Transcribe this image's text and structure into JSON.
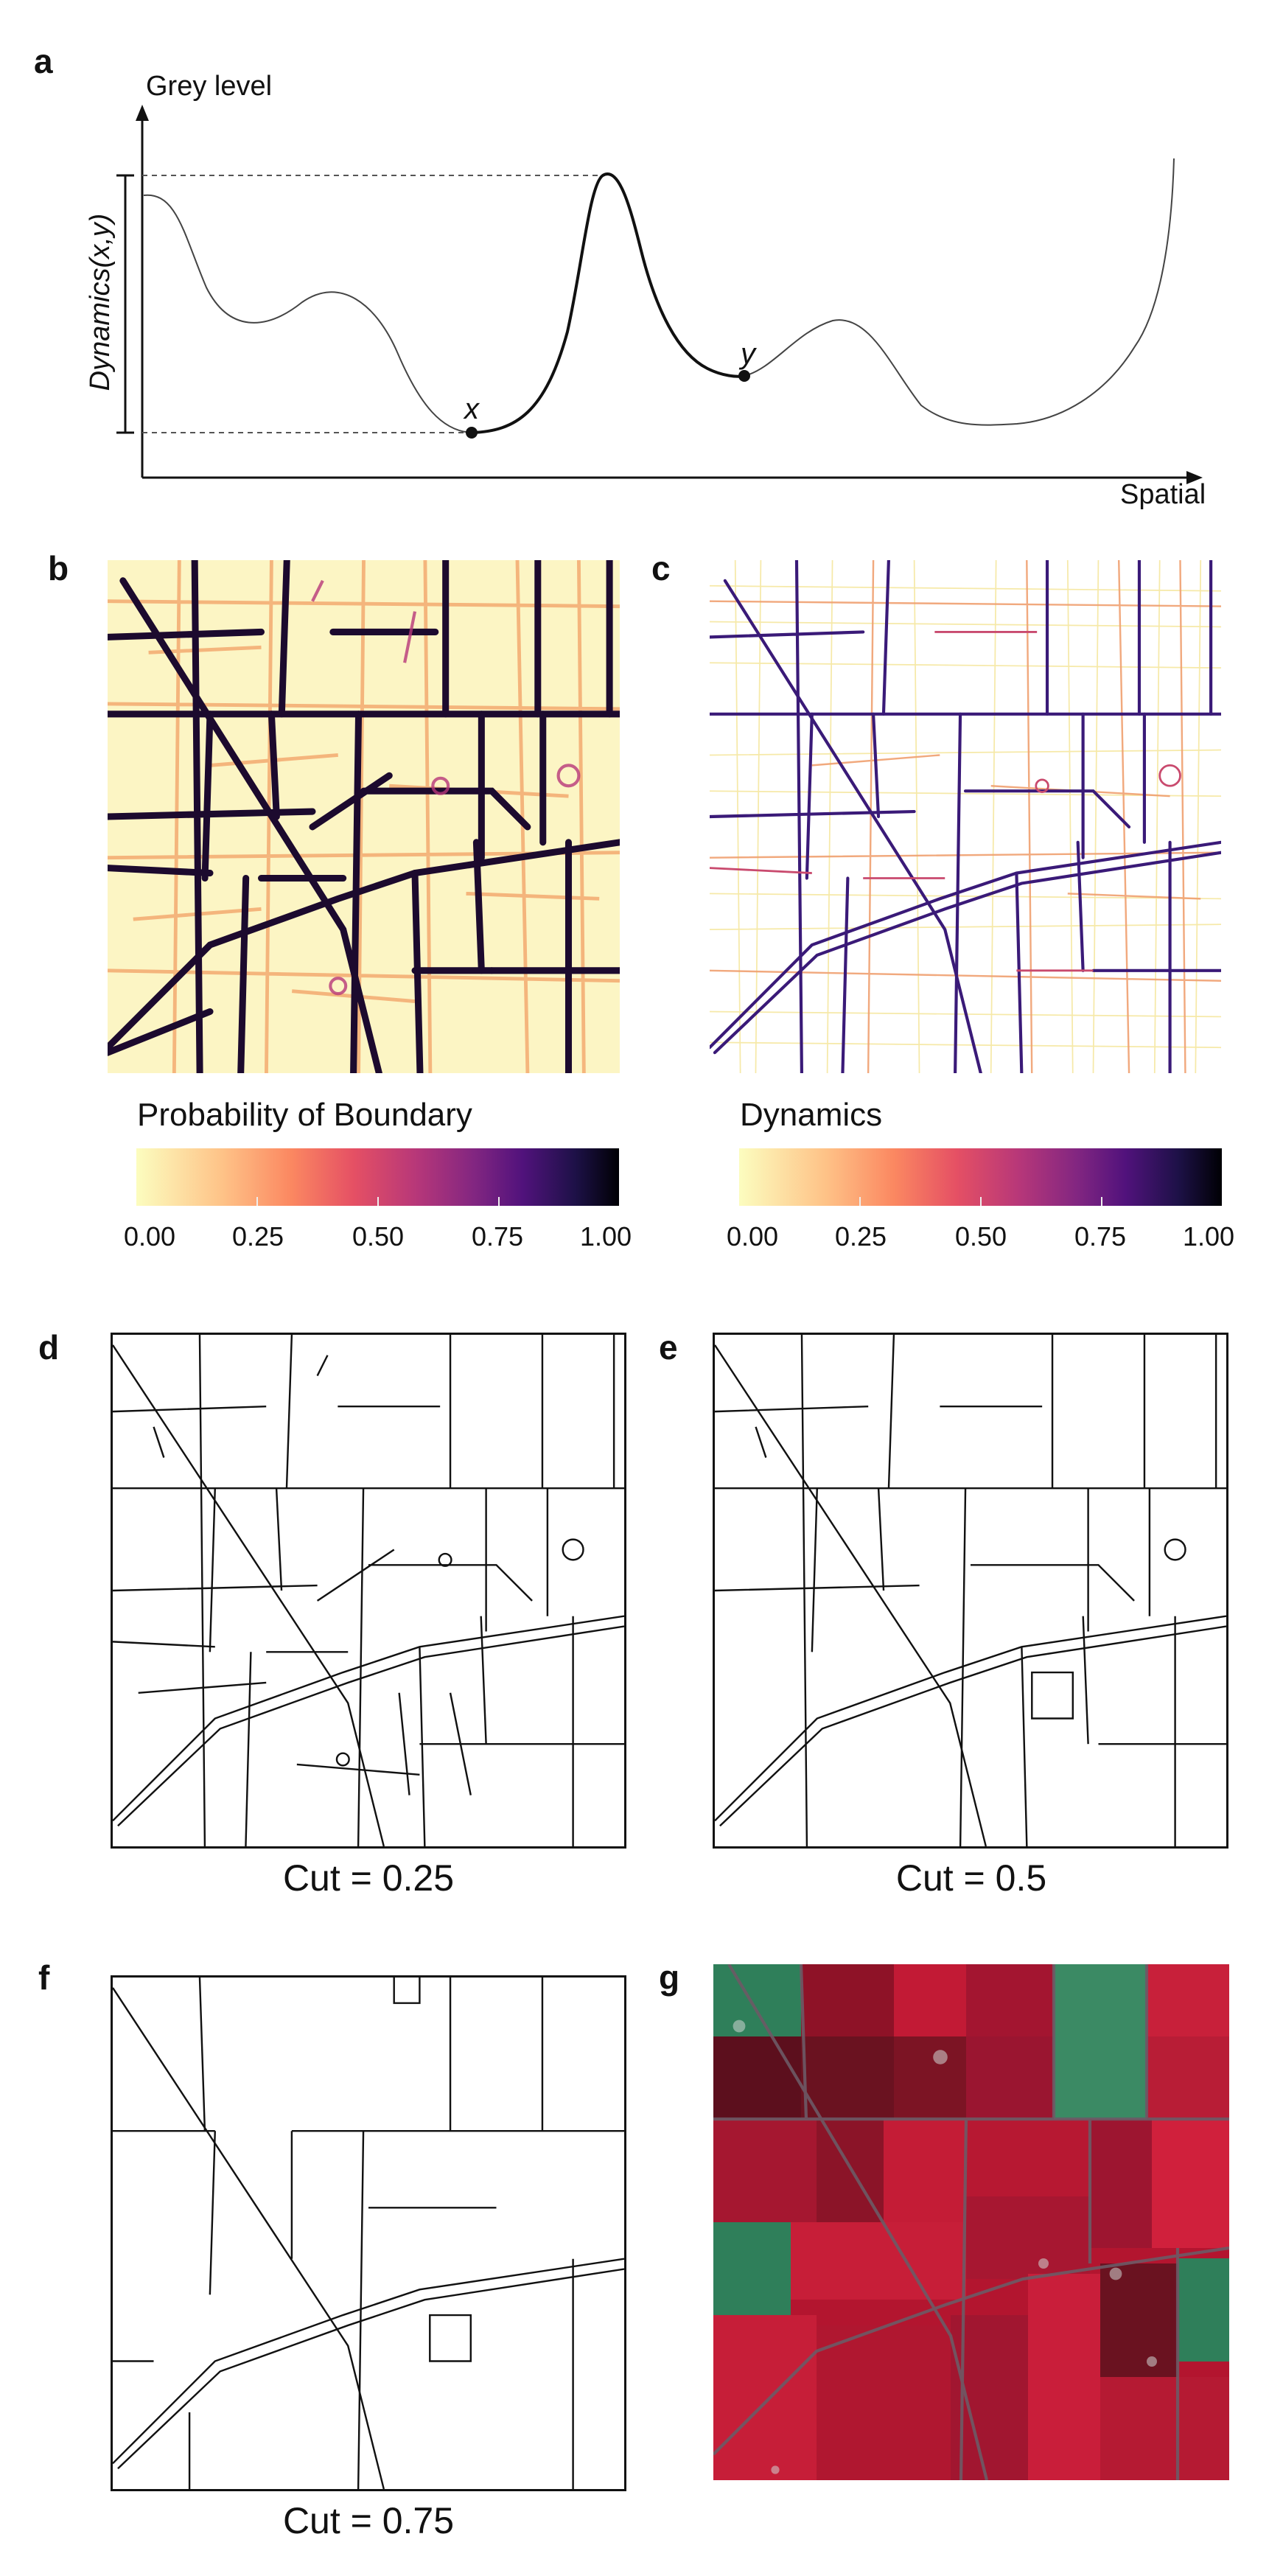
{
  "panels": {
    "a": {
      "letter": "a",
      "y_axis_label": "Grey level",
      "x_axis_label": "Spatial",
      "bracket_label": "Dynamics(x,y)",
      "point_x_label": "x",
      "point_y_label": "y"
    },
    "b": {
      "letter": "b"
    },
    "c": {
      "letter": "c"
    },
    "d": {
      "letter": "d",
      "caption": "Cut = 0.25"
    },
    "e": {
      "letter": "e",
      "caption": "Cut = 0.5"
    },
    "f": {
      "letter": "f",
      "caption": "Cut = 0.75"
    },
    "g": {
      "letter": "g"
    }
  },
  "colorbars": {
    "left": {
      "title": "Probability of Boundary",
      "ticks": [
        "0.00",
        "0.25",
        "0.50",
        "0.75",
        "1.00"
      ]
    },
    "right": {
      "title": "Dynamics",
      "ticks": [
        "0.00",
        "0.25",
        "0.50",
        "0.75",
        "1.00"
      ]
    },
    "colormap": [
      "#fcfdbf",
      "#fc8961",
      "#b73779",
      "#51127c",
      "#000004"
    ]
  },
  "colors": {
    "fields_red": "#b3152f",
    "fields_dark": "#5c0f1d",
    "fields_green": "#2f7f5a",
    "boundary": "#1c0a2e"
  }
}
